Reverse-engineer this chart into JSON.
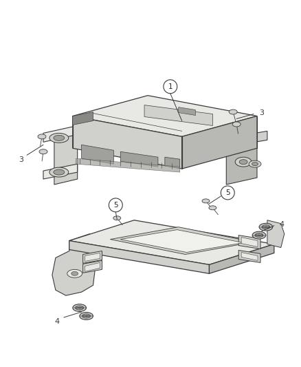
{
  "background_color": "#ffffff",
  "fig_width": 4.38,
  "fig_height": 5.33,
  "line_color": "#3a3a3a",
  "fill_light": "#e8e8e4",
  "fill_mid": "#d0d0cc",
  "fill_dark": "#b8b8b4",
  "fill_darker": "#a0a09c",
  "fill_shadow": "#888884"
}
